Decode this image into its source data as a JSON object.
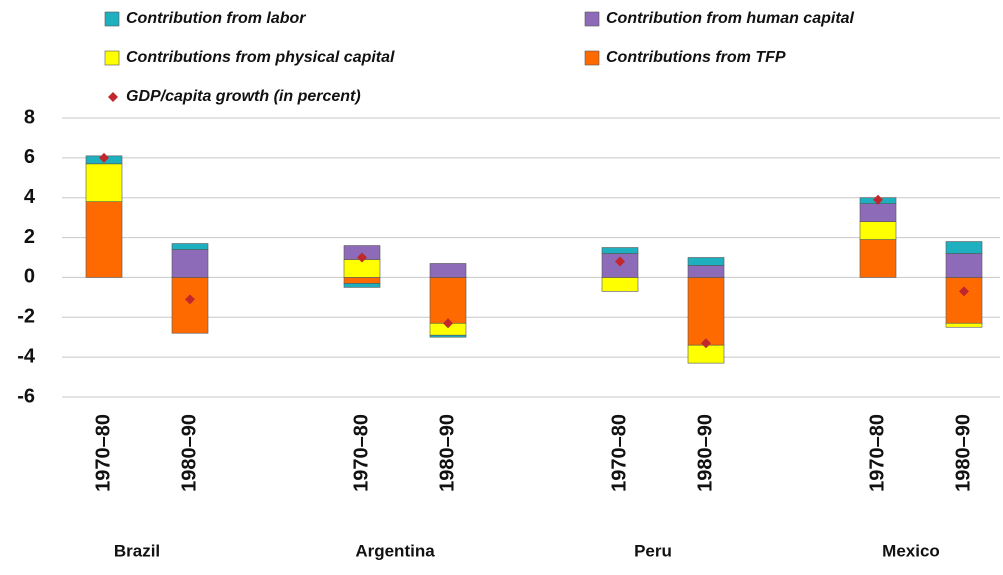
{
  "chart_data": {
    "type": "bar",
    "stacked": true,
    "categories": [
      "1970–80",
      "1980–90",
      null,
      "1970–80",
      "1980–90",
      null,
      "1970–80",
      "1980–90",
      null,
      "1970–80",
      "1980–90"
    ],
    "groups": [
      "Brazil",
      "Argentina",
      "Peru",
      "Mexico"
    ],
    "series": [
      {
        "name": "Contribution from labor",
        "color": "#1fb0c0",
        "values": [
          0.4,
          0.3,
          null,
          -0.2,
          -0.1,
          null,
          0.3,
          0.4,
          null,
          0.3,
          0.6
        ]
      },
      {
        "name": "Contribution from human capital",
        "color": "#8e6bb8",
        "values": [
          0,
          1.4,
          null,
          0.7,
          0.7,
          null,
          1.2,
          0.6,
          null,
          0.9,
          1.2
        ]
      },
      {
        "name": "Contributions from physical capital",
        "color": "#ffff00",
        "values": [
          1.9,
          0,
          null,
          0.9,
          -0.6,
          null,
          -0.7,
          -0.9,
          null,
          0.9,
          -0.2
        ]
      },
      {
        "name": "Contributions from TFP",
        "color": "#ff6a00",
        "values": [
          3.8,
          -2.8,
          null,
          -0.3,
          -2.3,
          null,
          0,
          -3.4,
          null,
          1.9,
          -2.3
        ]
      },
      {
        "name": "GDP/capita growth (in percent)",
        "color": "#c0282d",
        "type": "scatter",
        "values": [
          6.0,
          -1.1,
          null,
          1.0,
          -2.3,
          null,
          0.8,
          -3.3,
          null,
          3.9,
          -0.7
        ]
      }
    ],
    "ylim": [
      -6,
      8
    ],
    "yticks": [
      -6,
      -4,
      -2,
      0,
      2,
      4,
      6,
      8
    ],
    "grid": true
  }
}
